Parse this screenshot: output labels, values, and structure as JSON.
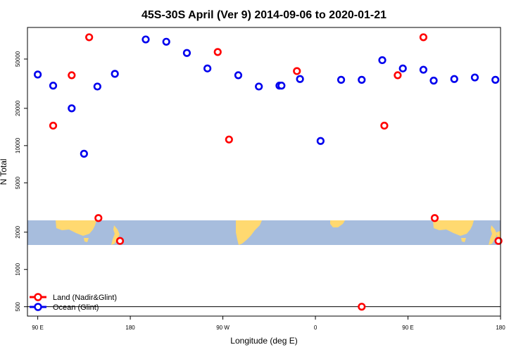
{
  "chart_data": {
    "type": "scatter",
    "title": "45S-30S April (Ver 9)   2014-09-06 to 2020-01-21",
    "xlabel": "Longitude (deg E)",
    "ylabel": "N Total",
    "y_scale": "log",
    "ylim": [
      420,
      90000
    ],
    "x_ticks": [
      "90 E",
      "180",
      "90 W",
      "0",
      "90 E",
      "180"
    ],
    "y_ticks": [
      {
        "value": 500,
        "label": "500"
      },
      {
        "value": 1000,
        "label": "1000"
      },
      {
        "value": 2000,
        "label": "2000"
      },
      {
        "value": 5000,
        "label": "5000"
      },
      {
        "value": 10000,
        "label": "10000"
      },
      {
        "value": 20000,
        "label": "20000"
      },
      {
        "value": 50000,
        "label": "50000"
      }
    ],
    "reference_line_y": 500,
    "legend_position": "bottom-left",
    "colors": {
      "land": "#ff0000",
      "ocean": "#0000ee",
      "map_ocean": "#a7bddd",
      "map_land": "#ffd970"
    },
    "series": [
      {
        "name": "Land (Nadir&Glint)",
        "key": "land",
        "x": [
          -165,
          -147,
          -130,
          -121,
          -100,
          -5,
          6,
          72,
          135,
          157,
          170,
          195,
          206,
          268
        ],
        "y": [
          14500,
          37000,
          75000,
          2600,
          1700,
          57000,
          11200,
          40000,
          500,
          14500,
          37000,
          75000,
          2600,
          1700
        ]
      },
      {
        "name": "Ocean (Glint)",
        "key": "ocean",
        "x": [
          -180,
          -165,
          -147,
          -135,
          -105,
          -75,
          -55,
          -35,
          -15,
          15,
          35,
          55,
          75,
          95,
          115,
          135,
          155,
          175,
          195,
          205,
          225,
          245,
          265,
          -122,
          57
        ],
        "y": [
          37500,
          30500,
          20000,
          8600,
          38000,
          72000,
          69000,
          56000,
          42000,
          37000,
          30000,
          30500,
          34500,
          10900,
          34000,
          34000,
          49000,
          42000,
          41000,
          33500,
          34500,
          35500,
          34000,
          30000,
          30500
        ]
      }
    ]
  }
}
